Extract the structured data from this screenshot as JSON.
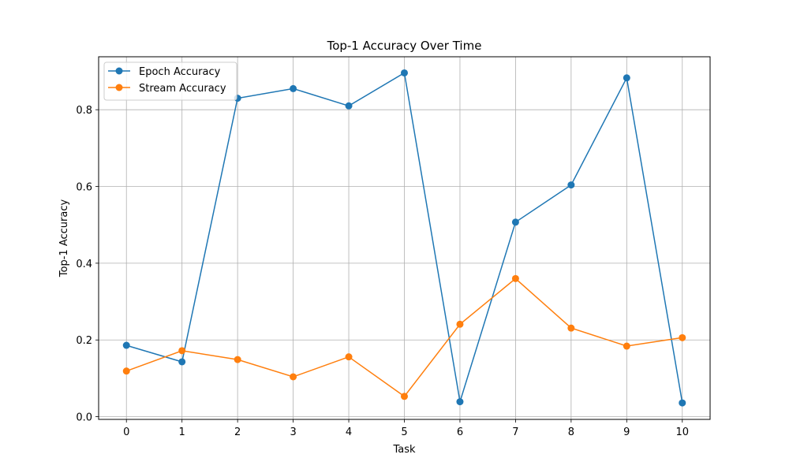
{
  "chart_data": {
    "type": "line",
    "title": "Top-1 Accuracy Over Time",
    "xlabel": "Task",
    "ylabel": "Top-1 Accuracy",
    "x": [
      0,
      1,
      2,
      3,
      4,
      5,
      6,
      7,
      8,
      9,
      10
    ],
    "xticks": [
      "0",
      "1",
      "2",
      "3",
      "4",
      "5",
      "6",
      "7",
      "8",
      "9",
      "10"
    ],
    "yticks": [
      0.0,
      0.2,
      0.4,
      0.6,
      0.8
    ],
    "ytick_labels": [
      "0.0",
      "0.2",
      "0.4",
      "0.6",
      "0.8"
    ],
    "xlim": [
      -0.5,
      10.5
    ],
    "ylim": [
      -0.007,
      0.938
    ],
    "grid": true,
    "legend_position": "top-left",
    "series": [
      {
        "name": "Epoch Accuracy",
        "color": "#1f77b4",
        "marker": "circle",
        "values": [
          0.186,
          0.143,
          0.83,
          0.855,
          0.81,
          0.896,
          0.039,
          0.507,
          0.604,
          0.883,
          0.036
        ]
      },
      {
        "name": "Stream Accuracy",
        "color": "#ff7f0e",
        "marker": "circle",
        "values": [
          0.119,
          0.172,
          0.149,
          0.104,
          0.156,
          0.053,
          0.241,
          0.36,
          0.231,
          0.184,
          0.206
        ]
      }
    ]
  }
}
